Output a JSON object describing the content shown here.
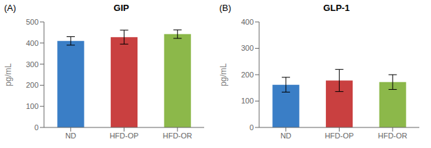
{
  "chart_data": [
    {
      "type": "bar",
      "title": "GIP",
      "ylabel": "pg/mL",
      "annotation": "(A)",
      "categories": [
        "ND",
        "HFD-OP",
        "HFD-OR"
      ],
      "values": [
        410,
        428,
        442
      ],
      "errors": [
        20,
        33,
        20
      ],
      "colors": [
        "#3A7EC6",
        "#C94040",
        "#8CB84A"
      ],
      "ylim": [
        0,
        500
      ],
      "yticks": [
        0,
        100,
        200,
        300,
        400,
        500
      ],
      "grid": false
    },
    {
      "type": "bar",
      "title": "GLP-1",
      "ylabel": "pg/mL",
      "annotation": "(B)",
      "categories": [
        "ND",
        "HFD-OP",
        "HFD-OR"
      ],
      "values": [
        162,
        178,
        172
      ],
      "errors": [
        28,
        42,
        28
      ],
      "colors": [
        "#3A7EC6",
        "#C94040",
        "#8CB84A"
      ],
      "ylim": [
        0,
        400
      ],
      "yticks": [
        0,
        100,
        200,
        300,
        400
      ],
      "grid": false
    }
  ]
}
